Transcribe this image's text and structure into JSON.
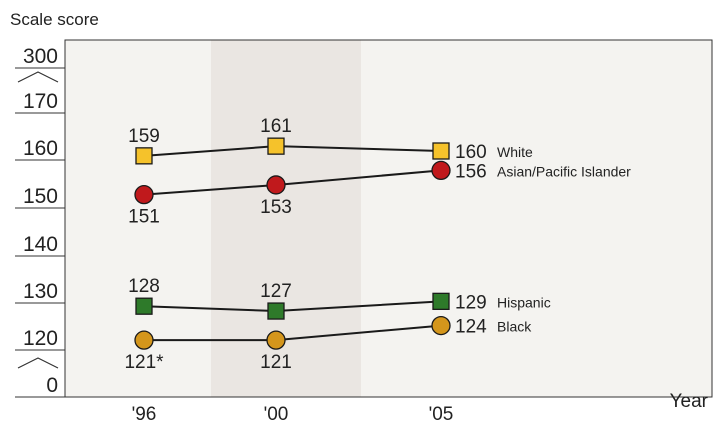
{
  "chart_data": {
    "type": "line",
    "ylabel": "Scale score",
    "xlabel": "Year",
    "categories": [
      "'96",
      "'00",
      "'05"
    ],
    "y_ticks": [
      "300",
      "170",
      "160",
      "150",
      "140",
      "130",
      "120",
      "0"
    ],
    "axis_break": "between 300 and 170 and between 120 and 0",
    "shaded_period": "'00",
    "series": [
      {
        "name": "White",
        "marker": "square",
        "color": "#F5C22B",
        "values": [
          159,
          161,
          160
        ],
        "labels": [
          "159",
          "161",
          "160"
        ]
      },
      {
        "name": "Asian/Pacific Islander",
        "marker": "circle",
        "color": "#C0191C",
        "values": [
          151,
          153,
          156
        ],
        "labels": [
          "151",
          "153",
          "156"
        ]
      },
      {
        "name": "Hispanic",
        "marker": "square",
        "color": "#2E7A2A",
        "values": [
          128,
          127,
          129
        ],
        "labels": [
          "128",
          "127",
          "129"
        ]
      },
      {
        "name": "Black",
        "marker": "circle",
        "color": "#D4961C",
        "values": [
          121,
          121,
          124
        ],
        "labels": [
          "121*",
          "121",
          "124"
        ]
      }
    ],
    "colors": {
      "plot_background": "#F4F3F0",
      "shaded_band": "#EAE6E2",
      "line": "#1A1A1A"
    }
  }
}
